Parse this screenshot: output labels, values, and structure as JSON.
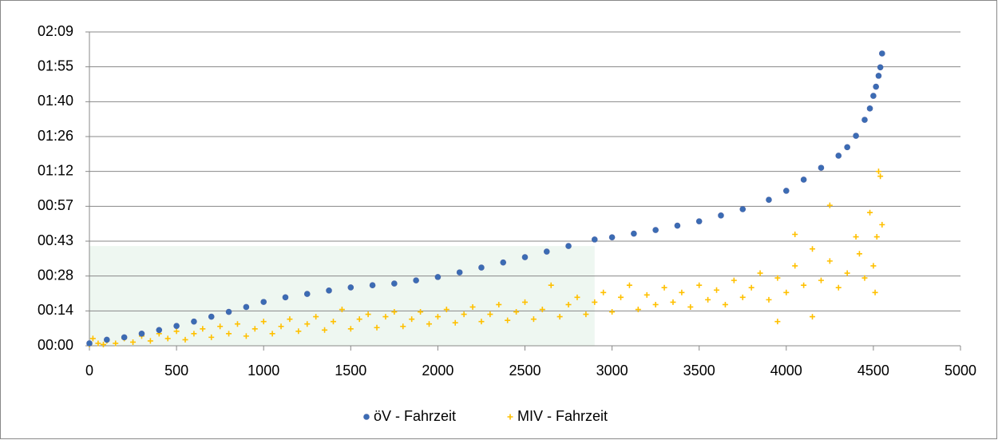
{
  "chart_data": {
    "type": "scatter",
    "xlim": [
      0,
      5000
    ],
    "xticks": [
      0,
      500,
      1000,
      1500,
      2000,
      2500,
      3000,
      3500,
      4000,
      4500,
      5000
    ],
    "ylim": [
      0,
      129.6
    ],
    "yticks": [
      {
        "value": 0,
        "label": "00:00"
      },
      {
        "value": 14.4,
        "label": "00:14"
      },
      {
        "value": 28.8,
        "label": "00:28"
      },
      {
        "value": 43.2,
        "label": "00:43"
      },
      {
        "value": 57.6,
        "label": "00:57"
      },
      {
        "value": 72,
        "label": "01:12"
      },
      {
        "value": 86.4,
        "label": "01:26"
      },
      {
        "value": 100.8,
        "label": "01:40"
      },
      {
        "value": 115.2,
        "label": "01:55"
      },
      {
        "value": 129.6,
        "label": "02:09"
      }
    ],
    "grid": true,
    "legend": "bottom",
    "shaded_region": {
      "x": [
        0,
        2900
      ],
      "y": [
        0,
        41.2
      ],
      "color": "#eef7f1"
    },
    "series": [
      {
        "name": "öV - Fahrzeit",
        "color": "#3b6cb4",
        "marker": "circle",
        "x": [
          0,
          100,
          200,
          300,
          400,
          500,
          600,
          700,
          800,
          900,
          1000,
          1125,
          1250,
          1375,
          1500,
          1625,
          1750,
          1875,
          2000,
          2125,
          2250,
          2375,
          2500,
          2625,
          2750,
          2900,
          3000,
          3125,
          3250,
          3375,
          3500,
          3625,
          3750,
          3900,
          4000,
          4100,
          4200,
          4300,
          4350,
          4400,
          4450,
          4480,
          4500,
          4515,
          4530,
          4540,
          4550
        ],
        "values": [
          1,
          2.5,
          3.5,
          5,
          6.5,
          8.2,
          10,
          12,
          14,
          16,
          18.1,
          20,
          21.4,
          22.8,
          24.1,
          25,
          25.7,
          27,
          28.4,
          30.3,
          32.3,
          34.4,
          36.6,
          38.9,
          41.2,
          43.9,
          44.8,
          46.3,
          47.8,
          49.6,
          51.4,
          53.8,
          56.4,
          60.3,
          64,
          68.6,
          73.5,
          78.5,
          82,
          86.7,
          93.3,
          98,
          103.2,
          107,
          111.5,
          115,
          120.7
        ]
      },
      {
        "name": "MIV - Fahrzeit",
        "color": "#ffc000",
        "marker": "plus",
        "x": [
          0,
          20,
          50,
          80,
          100,
          150,
          200,
          250,
          300,
          350,
          400,
          450,
          500,
          550,
          600,
          650,
          700,
          750,
          800,
          850,
          900,
          950,
          1000,
          1050,
          1100,
          1150,
          1200,
          1250,
          1300,
          1350,
          1400,
          1450,
          1500,
          1550,
          1600,
          1650,
          1700,
          1750,
          1800,
          1850,
          1900,
          1950,
          2000,
          2050,
          2100,
          2150,
          2200,
          2250,
          2300,
          2350,
          2400,
          2450,
          2500,
          2550,
          2600,
          2650,
          2700,
          2750,
          2800,
          2850,
          2900,
          2950,
          3000,
          3050,
          3100,
          3150,
          3200,
          3250,
          3300,
          3350,
          3400,
          3450,
          3500,
          3550,
          3600,
          3650,
          3700,
          3750,
          3800,
          3850,
          3900,
          3950,
          4000,
          4050,
          4100,
          4150,
          4200,
          4250,
          4300,
          4350,
          4400,
          4420,
          4450,
          4480,
          4500,
          4510,
          4520,
          4530,
          4540,
          4550,
          4250,
          4050,
          3950,
          4150
        ],
        "values": [
          0.5,
          3,
          1,
          0.5,
          2,
          1,
          3,
          1.5,
          4,
          2,
          5,
          3,
          6,
          2.5,
          5,
          7,
          3.5,
          8,
          5,
          9,
          4,
          7,
          10,
          5,
          8,
          11,
          6,
          9,
          12,
          6.5,
          10,
          15,
          7,
          11,
          13,
          7.5,
          12,
          14,
          8,
          11,
          14,
          9,
          12,
          15,
          9.5,
          13,
          16,
          10,
          13,
          17,
          10.5,
          14,
          18,
          11,
          15,
          25,
          12,
          17,
          20,
          13,
          18,
          22,
          14,
          20,
          25,
          15,
          21,
          17,
          24,
          18,
          22,
          16,
          25,
          19,
          23,
          17,
          27,
          20,
          24,
          30,
          19,
          28,
          22,
          33,
          25,
          40,
          27,
          35,
          24,
          30,
          45,
          38,
          28,
          55,
          33,
          22,
          45,
          72,
          70,
          50,
          58,
          46,
          10,
          12
        ]
      }
    ]
  }
}
